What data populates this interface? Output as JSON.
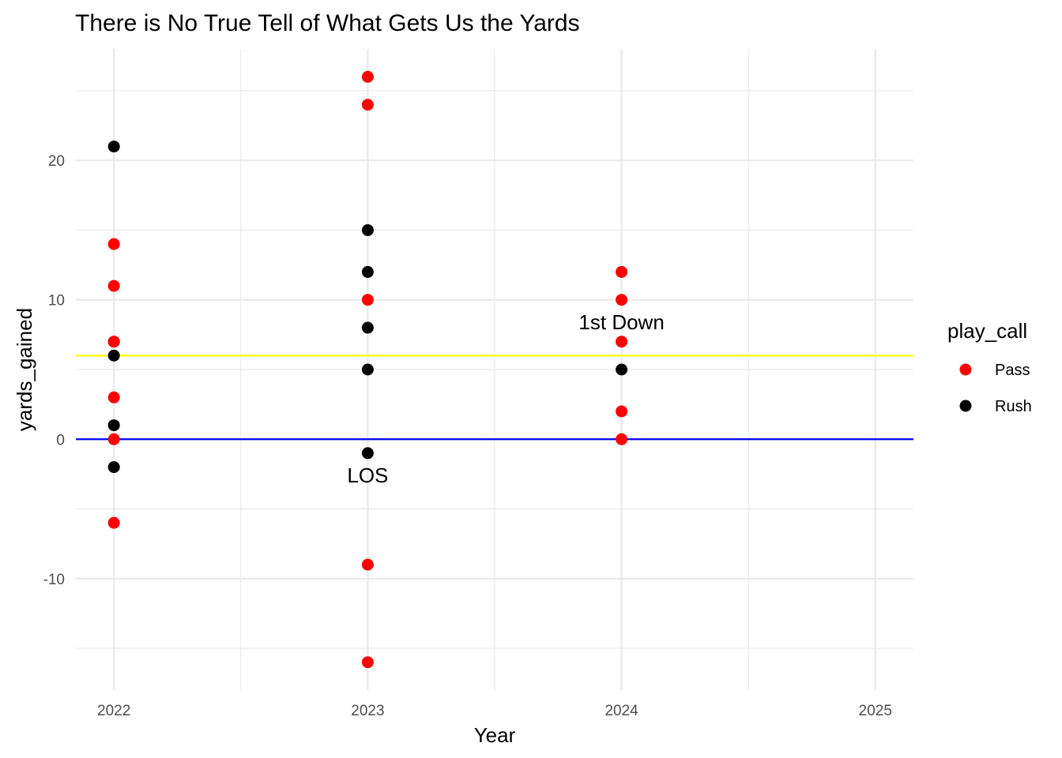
{
  "chart_data": {
    "type": "scatter",
    "title": "There is No True Tell of What Gets Us the Yards",
    "xlabel": "Year",
    "ylabel": "yards_gained",
    "xlim": [
      2021.85,
      2025.15
    ],
    "ylim": [
      -18.0,
      28.0
    ],
    "x_ticks": [
      2022,
      2023,
      2024,
      2025
    ],
    "y_ticks": [
      -10,
      0,
      10,
      20
    ],
    "x_tick_labels": [
      "2022",
      "2023",
      "2024",
      "2025"
    ],
    "y_tick_labels": [
      "-10",
      "0",
      "10",
      "20"
    ],
    "grid": true,
    "legend": {
      "title": "play_call",
      "position": "right",
      "entries": [
        {
          "name": "Pass",
          "color": "#ff0000"
        },
        {
          "name": "Rush",
          "color": "#000000"
        }
      ]
    },
    "series": [
      {
        "name": "Pass",
        "color": "#ff0000",
        "points": [
          {
            "x": 2022,
            "y": 14
          },
          {
            "x": 2022,
            "y": 11
          },
          {
            "x": 2022,
            "y": 7
          },
          {
            "x": 2022,
            "y": 3
          },
          {
            "x": 2022,
            "y": 0
          },
          {
            "x": 2022,
            "y": -6
          },
          {
            "x": 2023,
            "y": 26
          },
          {
            "x": 2023,
            "y": 24
          },
          {
            "x": 2023,
            "y": 10
          },
          {
            "x": 2023,
            "y": -9
          },
          {
            "x": 2023,
            "y": -16
          },
          {
            "x": 2024,
            "y": 12
          },
          {
            "x": 2024,
            "y": 10
          },
          {
            "x": 2024,
            "y": 7
          },
          {
            "x": 2024,
            "y": 2
          },
          {
            "x": 2024,
            "y": 0
          }
        ]
      },
      {
        "name": "Rush",
        "color": "#000000",
        "points": [
          {
            "x": 2022,
            "y": 21
          },
          {
            "x": 2022,
            "y": 7
          },
          {
            "x": 2022,
            "y": 6
          },
          {
            "x": 2022,
            "y": 1
          },
          {
            "x": 2022,
            "y": -2
          },
          {
            "x": 2023,
            "y": 15
          },
          {
            "x": 2023,
            "y": 12
          },
          {
            "x": 2023,
            "y": 8
          },
          {
            "x": 2023,
            "y": 5
          },
          {
            "x": 2023,
            "y": -1
          },
          {
            "x": 2024,
            "y": 5
          }
        ]
      }
    ],
    "draw_order": [
      {
        "x": 2022,
        "y": 21,
        "series": "Rush"
      },
      {
        "x": 2022,
        "y": 14,
        "series": "Pass"
      },
      {
        "x": 2022,
        "y": 11,
        "series": "Pass"
      },
      {
        "x": 2022,
        "y": 7,
        "series": "Rush"
      },
      {
        "x": 2022,
        "y": 7,
        "series": "Pass"
      },
      {
        "x": 2022,
        "y": 6,
        "series": "Rush"
      },
      {
        "x": 2022,
        "y": 3,
        "series": "Pass"
      },
      {
        "x": 2022,
        "y": 1,
        "series": "Rush"
      },
      {
        "x": 2022,
        "y": 0,
        "series": "Pass"
      },
      {
        "x": 2022,
        "y": -2,
        "series": "Rush"
      },
      {
        "x": 2022,
        "y": -6,
        "series": "Pass"
      },
      {
        "x": 2023,
        "y": 26,
        "series": "Pass"
      },
      {
        "x": 2023,
        "y": 24,
        "series": "Pass"
      },
      {
        "x": 2023,
        "y": 15,
        "series": "Rush"
      },
      {
        "x": 2023,
        "y": 12,
        "series": "Rush"
      },
      {
        "x": 2023,
        "y": 10,
        "series": "Pass"
      },
      {
        "x": 2023,
        "y": 8,
        "series": "Rush"
      },
      {
        "x": 2023,
        "y": 5,
        "series": "Rush"
      },
      {
        "x": 2023,
        "y": -1,
        "series": "Rush"
      },
      {
        "x": 2023,
        "y": -9,
        "series": "Pass"
      },
      {
        "x": 2023,
        "y": -16,
        "series": "Pass"
      },
      {
        "x": 2024,
        "y": 12,
        "series": "Pass"
      },
      {
        "x": 2024,
        "y": 10,
        "series": "Pass"
      },
      {
        "x": 2024,
        "y": 7,
        "series": "Pass"
      },
      {
        "x": 2024,
        "y": 5,
        "series": "Rush"
      },
      {
        "x": 2024,
        "y": 2,
        "series": "Pass"
      },
      {
        "x": 2024,
        "y": 0,
        "series": "Pass"
      }
    ],
    "reference_lines": [
      {
        "type": "hline",
        "y": 6,
        "color": "#ffff00",
        "label": "1st Down"
      },
      {
        "type": "hline",
        "y": 0,
        "color": "#0000ff",
        "label": "LOS"
      }
    ],
    "annotations": [
      {
        "text": "1st Down",
        "x": 2024,
        "y": 7.9
      },
      {
        "text": "LOS",
        "x": 2023,
        "y": -3.1
      }
    ]
  }
}
